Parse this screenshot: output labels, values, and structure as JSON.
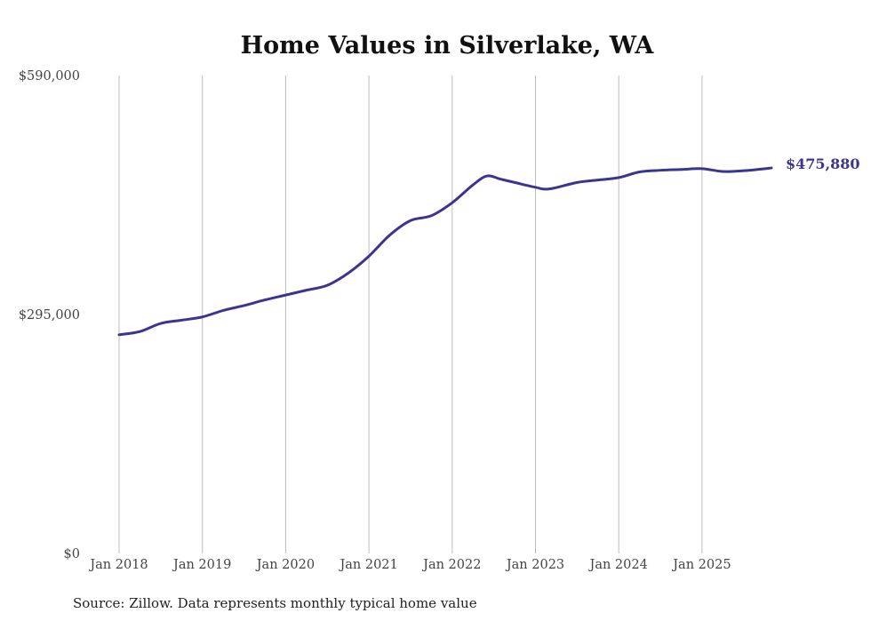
{
  "chart_data": {
    "type": "line",
    "title": "Home Values in Silverlake, WA",
    "xlabel": "",
    "ylabel": "",
    "ylim": [
      0,
      590000
    ],
    "y_ticks": [
      {
        "value": 0,
        "label": "$0"
      },
      {
        "value": 295000,
        "label": "$295,000"
      },
      {
        "value": 590000,
        "label": "$590,000"
      }
    ],
    "x_ticks": [
      {
        "month": "2018-01",
        "label": "Jan 2018"
      },
      {
        "month": "2019-01",
        "label": "Jan 2019"
      },
      {
        "month": "2020-01",
        "label": "Jan 2020"
      },
      {
        "month": "2021-01",
        "label": "Jan 2021"
      },
      {
        "month": "2022-01",
        "label": "Jan 2022"
      },
      {
        "month": "2023-01",
        "label": "Jan 2023"
      },
      {
        "month": "2024-01",
        "label": "Jan 2024"
      },
      {
        "month": "2025-01",
        "label": "Jan 2025"
      }
    ],
    "grid": "vertical",
    "series": [
      {
        "name": "Typical home value",
        "color": "#3b3592",
        "end_label": "$475,880",
        "x": [
          "2018-01",
          "2018-04",
          "2018-07",
          "2018-10",
          "2019-01",
          "2019-04",
          "2019-07",
          "2019-10",
          "2020-01",
          "2020-04",
          "2020-07",
          "2020-10",
          "2021-01",
          "2021-04",
          "2021-07",
          "2021-10",
          "2022-01",
          "2022-04",
          "2022-06",
          "2022-08",
          "2022-10",
          "2023-01",
          "2023-03",
          "2023-07",
          "2023-10",
          "2024-01",
          "2024-04",
          "2024-07",
          "2024-10",
          "2025-01",
          "2025-04",
          "2025-07",
          "2025-09",
          "2025-11"
        ],
        "values": [
          270000,
          274000,
          284000,
          288000,
          292000,
          300000,
          306000,
          313000,
          319000,
          325000,
          331000,
          346000,
          367000,
          393000,
          411000,
          417000,
          433000,
          455000,
          466000,
          462000,
          458000,
          452000,
          450000,
          458000,
          461000,
          464000,
          471000,
          473000,
          474000,
          475000,
          471500,
          472500,
          474000,
          475880
        ]
      }
    ]
  },
  "source": "Source: Zillow. Data represents monthly typical home value"
}
